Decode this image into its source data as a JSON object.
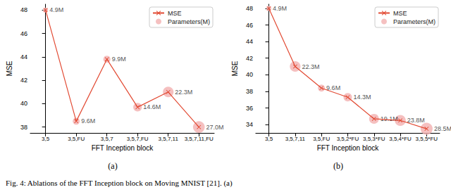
{
  "chart_data": [
    {
      "type": "line",
      "title": "(a)",
      "x_label": "FFT Inception block",
      "y_label": "MSE",
      "categories": [
        "3,5",
        "3,5,FU",
        "3,5,7",
        "3,5,7,FU",
        "3,5,7,11",
        "3,5,7,11,FU"
      ],
      "series": [
        {
          "name": "MSE",
          "color": "#e24a33",
          "marker": "x",
          "values": [
            48.0,
            38.5,
            43.8,
            39.7,
            41.0,
            38.0
          ],
          "size_legend": "Parameters(M)",
          "size_color": "#f2b0b0",
          "parameters": [
            4.9,
            9.6,
            9.9,
            14.6,
            22.3,
            27.0
          ],
          "parameter_labels": [
            "4.9M",
            "9.6M",
            "9.9M",
            "14.6M",
            "22.3M",
            "27.0M"
          ]
        }
      ],
      "ylim": [
        37.5,
        48.5
      ],
      "yticks": [
        38,
        40,
        42,
        44,
        46,
        48
      ],
      "grid": false,
      "legend": "upper right"
    },
    {
      "type": "line",
      "title": "(b)",
      "x_label": "FFT Inception block",
      "y_label": "MSE",
      "categories": [
        "3,5",
        "3,5,7,11",
        "3,5,FU",
        "3,5,2*FU",
        "3,5,3*FU",
        "3,5,4*FU",
        "3,5,5*FU"
      ],
      "series": [
        {
          "name": "MSE",
          "color": "#e24a33",
          "marker": "x",
          "values": [
            48.0,
            41.0,
            38.4,
            37.3,
            34.7,
            34.5,
            33.5
          ],
          "size_legend": "Parameters(M)",
          "size_color": "#f2b0b0",
          "parameters": [
            4.9,
            22.3,
            9.6,
            14.3,
            19.1,
            23.8,
            28.5
          ],
          "parameter_labels": [
            "4.9M",
            "22.3M",
            "9.6M",
            "14.3M",
            "19.1M",
            "23.8M",
            "28.5M"
          ]
        }
      ],
      "ylim": [
        33,
        48.5
      ],
      "yticks": [
        34,
        36,
        38,
        40,
        42,
        44,
        46,
        48
      ],
      "grid": false,
      "legend": "upper right"
    }
  ],
  "caption": "Fig. 4: Ablations of the FFT Inception block on Moving MNIST [21]. (a)"
}
